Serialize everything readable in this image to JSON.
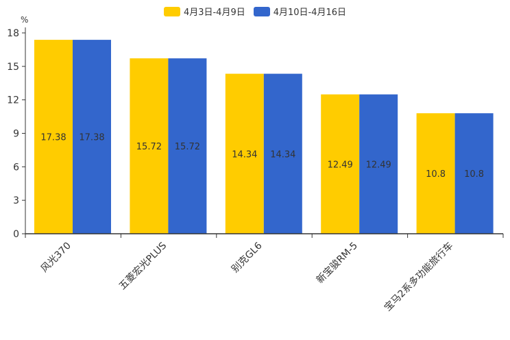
{
  "chart_data": {
    "type": "bar",
    "unit_label": "%",
    "categories": [
      "风光370",
      "五菱宏光PLUS",
      "别克GL6",
      "新宝骏RM-5",
      "宝马2系多功能旅行车"
    ],
    "series": [
      {
        "name": "4月3日-4月9日",
        "color": "#ffcc00",
        "values": [
          17.38,
          15.72,
          14.34,
          12.49,
          10.8
        ],
        "labels": [
          "17.38",
          "15.72",
          "14.34",
          "12.49",
          "10.8"
        ]
      },
      {
        "name": "4月10日-4月16日",
        "color": "#3366cc",
        "values": [
          17.38,
          15.72,
          14.34,
          12.49,
          10.8
        ],
        "labels": [
          "17.38",
          "15.72",
          "14.34",
          "12.49",
          "10.8"
        ]
      }
    ],
    "yticks": [
      "0",
      "3",
      "6",
      "9",
      "12",
      "15",
      "18"
    ],
    "ylim": [
      0,
      18
    ],
    "legend_position": "top-center"
  }
}
